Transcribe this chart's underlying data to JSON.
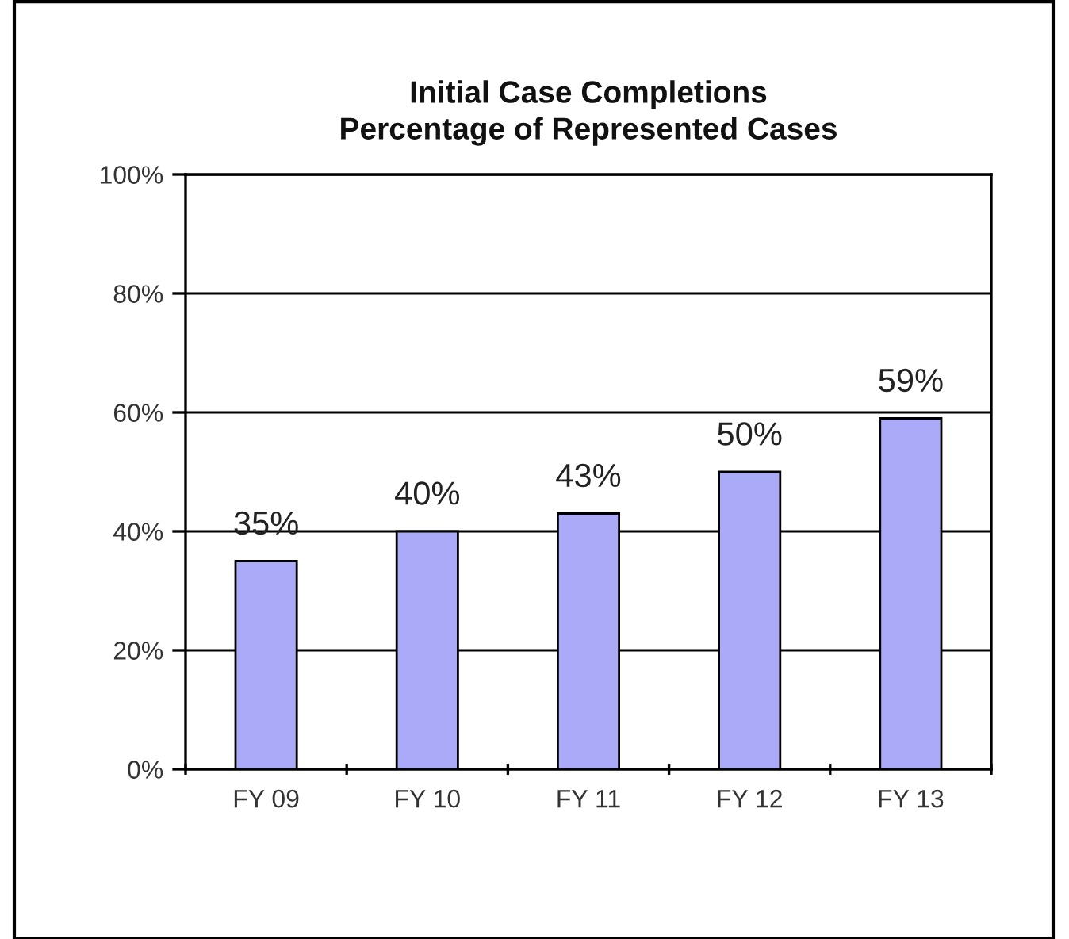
{
  "chart_data": {
    "type": "bar",
    "title": "Initial Case Completions\nPercentage of Represented Cases",
    "categories": [
      "FY 09",
      "FY 10",
      "FY 11",
      "FY 12",
      "FY 13"
    ],
    "values": [
      35,
      40,
      43,
      50,
      59
    ],
    "color": "#aaaaf8",
    "value_labels": [
      "35%",
      "40%",
      "43%",
      "50%",
      "59%"
    ],
    "ylim": [
      0,
      100
    ],
    "yticks": [
      {
        "value": 0,
        "label": "0%"
      },
      {
        "value": 20,
        "label": "20%"
      },
      {
        "value": 40,
        "label": "40%"
      },
      {
        "value": 60,
        "label": "60%"
      },
      {
        "value": 80,
        "label": "80%"
      },
      {
        "value": 100,
        "label": "100%"
      }
    ],
    "grid": "y",
    "legend": false
  }
}
